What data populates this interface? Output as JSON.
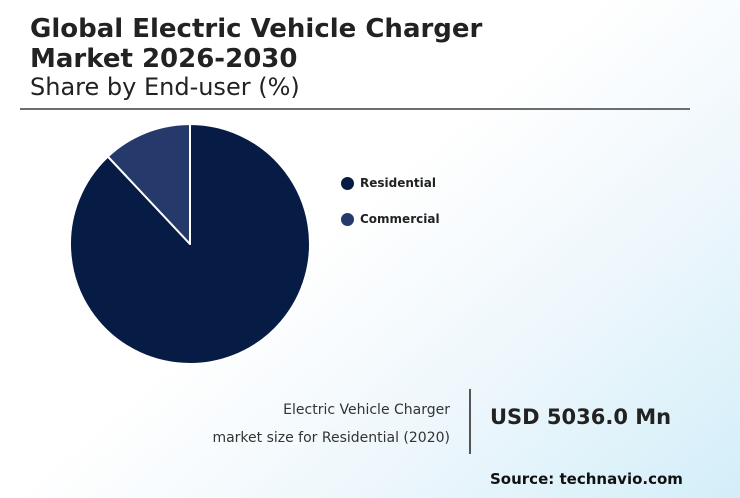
{
  "header": {
    "title_line1": "Global Electric Vehicle Charger",
    "title_line2": "Market 2026-2030",
    "subtitle": "Share by End-user (%)"
  },
  "chart_data": {
    "type": "pie",
    "title": "Global Electric Vehicle Charger Market 2026-2030",
    "subtitle": "Share by End-user (%)",
    "legend_position": "right",
    "slices": [
      {
        "label": "Residential",
        "value": 88,
        "color": "#061c44"
      },
      {
        "label": "Commercial",
        "value": 12,
        "color": "#25396b"
      }
    ]
  },
  "highlight": {
    "caption_line1": "Electric Vehicle Charger",
    "caption_line2": "market size for Residential (2020)",
    "value": "USD 5036.0 Mn"
  },
  "source": "Source: technavio.com",
  "colors": {
    "rule": "#6d6d6d",
    "slice_separator": "#ffffff"
  }
}
